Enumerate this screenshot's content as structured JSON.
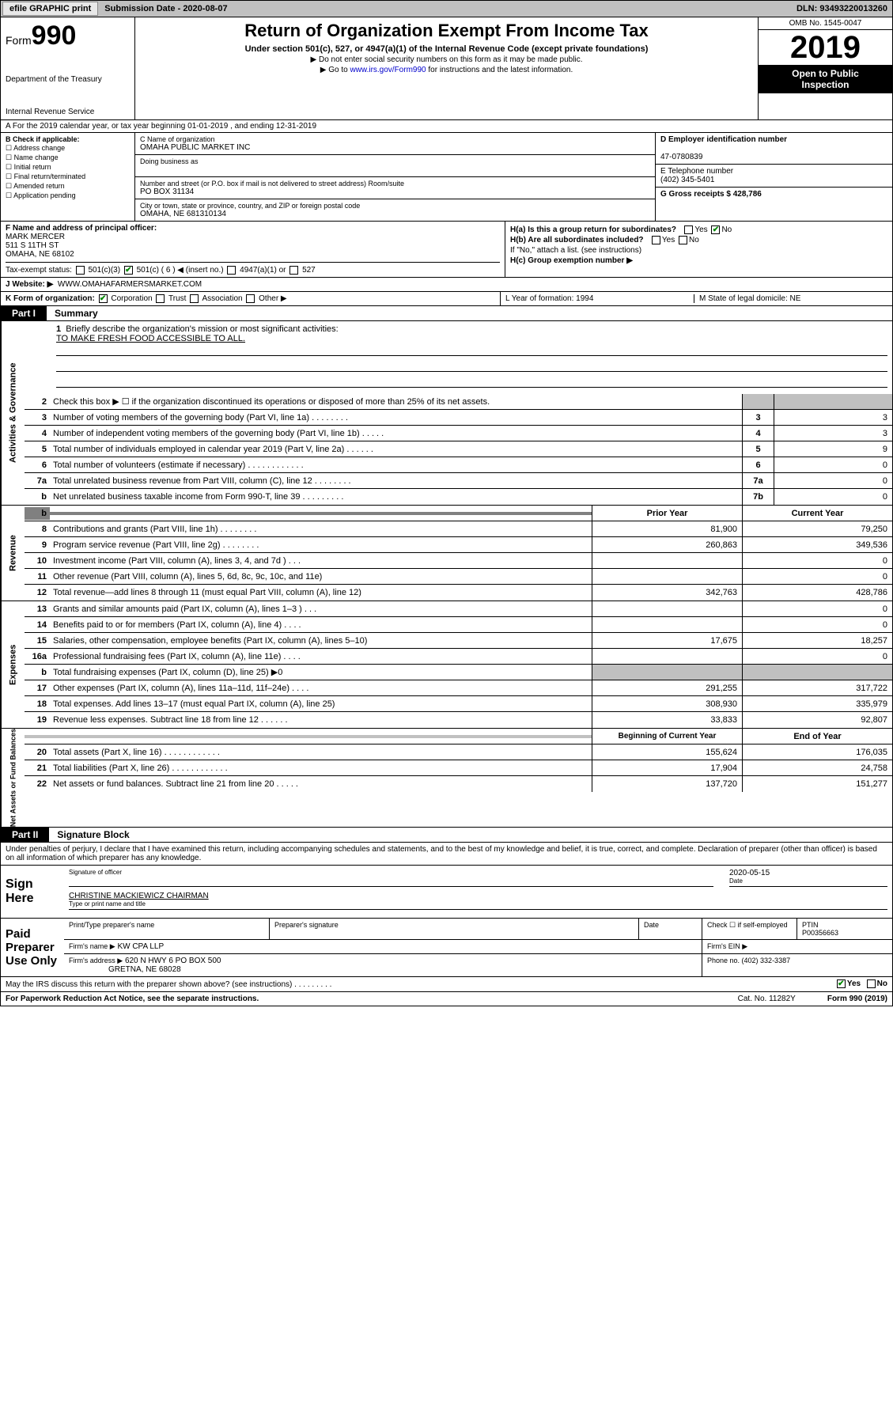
{
  "topbar": {
    "efile_label": "efile GRAPHIC print",
    "submission_label": "Submission Date - 2020-08-07",
    "dln_label": "DLN: 93493220013260"
  },
  "header": {
    "form_prefix": "Form",
    "form_number": "990",
    "dept": "Department of the Treasury",
    "irs": "Internal Revenue Service",
    "title": "Return of Organization Exempt From Income Tax",
    "subtitle": "Under section 501(c), 527, or 4947(a)(1) of the Internal Revenue Code (except private foundations)",
    "note1": "▶ Do not enter social security numbers on this form as it may be made public.",
    "note2_pre": "▶ Go to ",
    "note2_link": "www.irs.gov/Form990",
    "note2_post": " for instructions and the latest information.",
    "omb": "OMB No. 1545-0047",
    "year": "2019",
    "inspect1": "Open to Public",
    "inspect2": "Inspection"
  },
  "row_a": "A   For the 2019 calendar year, or tax year beginning 01-01-2019       , and ending 12-31-2019",
  "col_b": {
    "label": "B Check if applicable:",
    "items": [
      "Address change",
      "Name change",
      "Initial return",
      "Final return/terminated",
      "Amended return",
      "Application pending"
    ]
  },
  "col_c": {
    "name_label": "C Name of organization",
    "name": "OMAHA PUBLIC MARKET INC",
    "dba_label": "Doing business as",
    "addr_label": "Number and street (or P.O. box if mail is not delivered to street address)        Room/suite",
    "addr": "PO BOX 31134",
    "city_label": "City or town, state or province, country, and ZIP or foreign postal code",
    "city": "OMAHA, NE  681310134"
  },
  "col_de": {
    "d_label": "D Employer identification number",
    "d_val": "47-0780839",
    "e_label": "E Telephone number",
    "e_val": "(402) 345-5401",
    "g_label": "G Gross receipts $ 428,786"
  },
  "block_f": {
    "label": "F  Name and address of principal officer:",
    "name": "MARK MERCER",
    "addr1": "511 S 11TH ST",
    "addr2": "OMAHA, NE  68102"
  },
  "block_h": {
    "ha": "H(a)  Is this a group return for subordinates?",
    "ha_ans": "No",
    "hb": "H(b)  Are all subordinates included?",
    "hb_note": "If \"No,\" attach a list. (see instructions)",
    "hc": "H(c)  Group exemption number ▶"
  },
  "tax_exempt": {
    "label": "Tax-exempt status:",
    "opt1": "501(c)(3)",
    "opt2": "501(c) ( 6 ) ◀ (insert no.)",
    "opt3": "4947(a)(1) or",
    "opt4": "527"
  },
  "row_j": {
    "label": "J     Website: ▶",
    "val": "WWW.OMAHAFARMERSMARKET.COM"
  },
  "row_k": {
    "label": "K Form of organization:",
    "corp": "Corporation",
    "trust": "Trust",
    "assoc": "Association",
    "other": "Other ▶",
    "l_label": "L Year of formation: 1994",
    "m_label": "M State of legal domicile: NE"
  },
  "part1": {
    "tab": "Part I",
    "title": "Summary"
  },
  "mission": {
    "num": "1",
    "label": "Briefly describe the organization's mission or most significant activities:",
    "text": "TO MAKE FRESH FOOD ACCESSIBLE TO ALL."
  },
  "gov_rows": [
    {
      "num": "2",
      "desc": "Check this box ▶ ☐  if the organization discontinued its operations or disposed of more than 25% of its net assets.",
      "cell": "",
      "val": ""
    },
    {
      "num": "3",
      "desc": "Number of voting members of the governing body (Part VI, line 1a)   .    .    .    .    .    .    .    .",
      "cell": "3",
      "val": "3"
    },
    {
      "num": "4",
      "desc": "Number of independent voting members of the governing body (Part VI, line 1b)   .    .    .    .    .",
      "cell": "4",
      "val": "3"
    },
    {
      "num": "5",
      "desc": "Total number of individuals employed in calendar year 2019 (Part V, line 2a)   .    .    .    .    .    .",
      "cell": "5",
      "val": "9"
    },
    {
      "num": "6",
      "desc": "Total number of volunteers (estimate if necessary)   .    .    .    .    .    .    .    .    .    .    .    .",
      "cell": "6",
      "val": "0"
    },
    {
      "num": "7a",
      "desc": "Total unrelated business revenue from Part VIII, column (C), line 12   .    .    .    .    .    .    .    .",
      "cell": "7a",
      "val": "0"
    },
    {
      "num": "b",
      "desc": "Net unrelated business taxable income from Form 990-T, line 39   .    .    .    .    .    .    .    .    .",
      "cell": "7b",
      "val": "0"
    }
  ],
  "rev_hdr": {
    "prior": "Prior Year",
    "curr": "Current Year"
  },
  "rev_rows": [
    {
      "num": "8",
      "desc": "Contributions and grants (Part VIII, line 1h)   .    .    .    .    .    .    .    .",
      "prior": "81,900",
      "curr": "79,250"
    },
    {
      "num": "9",
      "desc": "Program service revenue (Part VIII, line 2g)   .    .    .    .    .    .    .    .",
      "prior": "260,863",
      "curr": "349,536"
    },
    {
      "num": "10",
      "desc": "Investment income (Part VIII, column (A), lines 3, 4, and 7d )   .    .    .",
      "prior": "",
      "curr": "0"
    },
    {
      "num": "11",
      "desc": "Other revenue (Part VIII, column (A), lines 5, 6d, 8c, 9c, 10c, and 11e)",
      "prior": "",
      "curr": "0"
    },
    {
      "num": "12",
      "desc": "Total revenue—add lines 8 through 11 (must equal Part VIII, column (A), line 12)",
      "prior": "342,763",
      "curr": "428,786"
    }
  ],
  "exp_rows": [
    {
      "num": "13",
      "desc": "Grants and similar amounts paid (Part IX, column (A), lines 1–3 )   .    .    .",
      "prior": "",
      "curr": "0"
    },
    {
      "num": "14",
      "desc": "Benefits paid to or for members (Part IX, column (A), line 4)   .    .    .    .",
      "prior": "",
      "curr": "0"
    },
    {
      "num": "15",
      "desc": "Salaries, other compensation, employee benefits (Part IX, column (A), lines 5–10)",
      "prior": "17,675",
      "curr": "18,257"
    },
    {
      "num": "16a",
      "desc": "Professional fundraising fees (Part IX, column (A), line 11e)   .    .    .    .",
      "prior": "",
      "curr": "0"
    },
    {
      "num": "b",
      "desc": "Total fundraising expenses (Part IX, column (D), line 25) ▶0",
      "prior": "–",
      "curr": "–"
    },
    {
      "num": "17",
      "desc": "Other expenses (Part IX, column (A), lines 11a–11d, 11f–24e)   .    .    .    .",
      "prior": "291,255",
      "curr": "317,722"
    },
    {
      "num": "18",
      "desc": "Total expenses. Add lines 13–17 (must equal Part IX, column (A), line 25)",
      "prior": "308,930",
      "curr": "335,979"
    },
    {
      "num": "19",
      "desc": "Revenue less expenses. Subtract line 18 from line 12   .    .    .    .    .    .",
      "prior": "33,833",
      "curr": "92,807"
    }
  ],
  "net_hdr": {
    "prior": "Beginning of Current Year",
    "curr": "End of Year"
  },
  "net_rows": [
    {
      "num": "20",
      "desc": "Total assets (Part X, line 16)   .    .    .    .    .    .    .    .    .    .    .    .",
      "prior": "155,624",
      "curr": "176,035"
    },
    {
      "num": "21",
      "desc": "Total liabilities (Part X, line 26)   .    .    .    .    .    .    .    .    .    .    .    .",
      "prior": "17,904",
      "curr": "24,758"
    },
    {
      "num": "22",
      "desc": "Net assets or fund balances. Subtract line 21 from line 20   .    .    .    .    .",
      "prior": "137,720",
      "curr": "151,277"
    }
  ],
  "side_labels": {
    "gov": "Activities & Governance",
    "rev": "Revenue",
    "exp": "Expenses",
    "net": "Net Assets or Fund Balances"
  },
  "part2": {
    "tab": "Part II",
    "title": "Signature Block"
  },
  "sig_declare": "Under penalties of perjury, I declare that I have examined this return, including accompanying schedules and statements, and to the best of my knowledge and belief, it is true, correct, and complete. Declaration of preparer (other than officer) is based on all information of which preparer has any knowledge.",
  "sign_here": {
    "label": "Sign Here",
    "sig_label": "Signature of officer",
    "date": "2020-05-15",
    "date_label": "Date",
    "name": "CHRISTINE MACKIEWICZ  CHAIRMAN",
    "name_label": "Type or print name and title"
  },
  "paid": {
    "label": "Paid Preparer Use Only",
    "h1": "Print/Type preparer's name",
    "h2": "Preparer's signature",
    "h3": "Date",
    "h4_a": "Check ☐ if self-employed",
    "h4_b": "PTIN",
    "ptin": "P00356663",
    "firm_name_label": "Firm's name    ▶",
    "firm_name": "KW CPA LLP",
    "firm_ein_label": "Firm's EIN ▶",
    "firm_addr_label": "Firm's address ▶",
    "firm_addr1": "620 N HWY 6 PO BOX 500",
    "firm_addr2": "GRETNA, NE  68028",
    "phone_label": "Phone no. (402) 332-3387"
  },
  "discuss": {
    "text": "May the IRS discuss this return with the preparer shown above? (see instructions)   .    .    .    .    .    .    .    .    .",
    "yes": "Yes",
    "no": "No"
  },
  "footer": {
    "left": "For Paperwork Reduction Act Notice, see the separate instructions.",
    "mid": "Cat. No. 11282Y",
    "right": "Form 990 (2019)"
  }
}
